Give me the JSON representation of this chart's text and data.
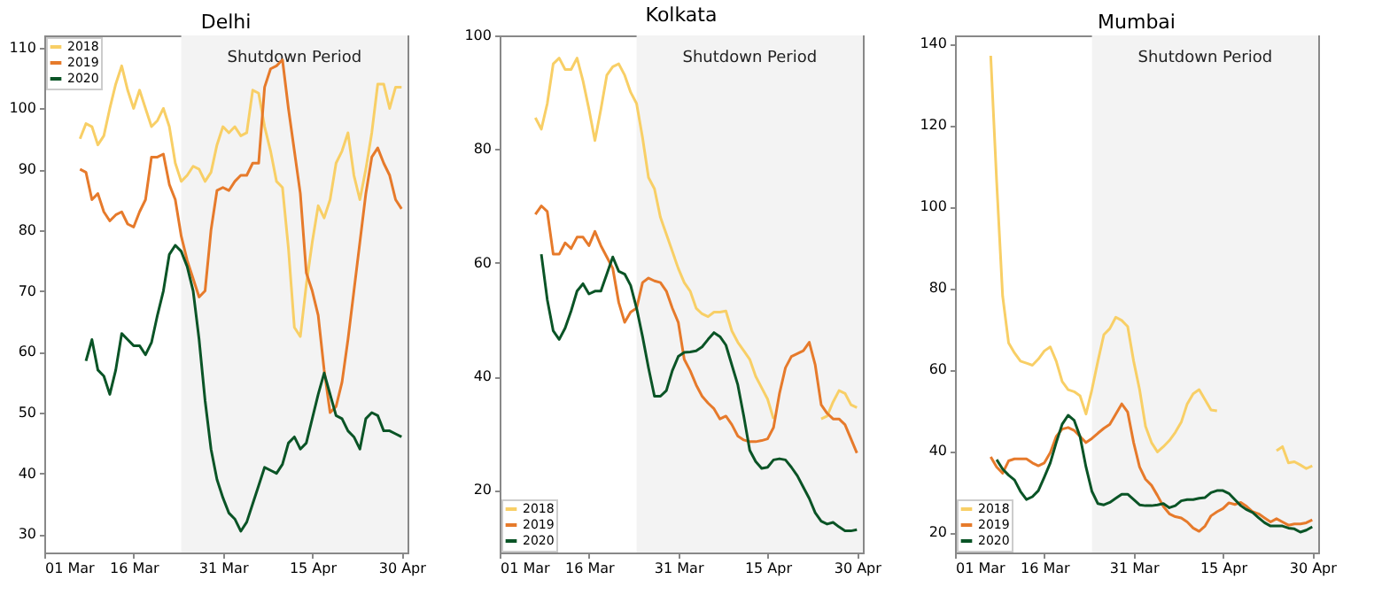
{
  "chart_data": [
    {
      "type": "line",
      "title": "Delhi",
      "legend": "top left",
      "grid": false,
      "x": [
        "--03-07",
        "--03-08",
        "--03-09",
        "--03-10",
        "--03-11",
        "--03-12",
        "--03-13",
        "--03-14",
        "--03-15",
        "--03-16",
        "--03-17",
        "--03-18",
        "--03-19",
        "--03-20",
        "--03-21",
        "--03-22",
        "--03-23",
        "--03-24",
        "--03-25",
        "--03-26",
        "--03-27",
        "--03-28",
        "--03-29",
        "--03-30",
        "--03-31",
        "--04-01",
        "--04-02",
        "--04-03",
        "--04-04",
        "--04-05",
        "--04-06",
        "--04-07",
        "--04-08",
        "--04-09",
        "--04-10",
        "--04-11",
        "--04-12",
        "--04-13",
        "--04-14",
        "--04-15",
        "--04-16",
        "--04-17",
        "--04-18",
        "--04-19",
        "--04-20",
        "--04-21",
        "--04-22",
        "--04-23",
        "--04-24",
        "--04-25",
        "--04-26",
        "--04-27",
        "--04-28",
        "--04-29",
        "--04-30"
      ],
      "xlim": [
        "--03-01",
        "--05-01"
      ],
      "xticks": [
        {
          "value": "--03-01",
          "label": "01 Mar"
        },
        {
          "value": "--03-16",
          "label": "16 Mar"
        },
        {
          "value": "--03-31",
          "label": "31 Mar"
        },
        {
          "value": "--04-15",
          "label": "15 Apr"
        },
        {
          "value": "--04-30",
          "label": "30 Apr"
        }
      ],
      "ylim": [
        27,
        112
      ],
      "yticks": [
        30,
        40,
        50,
        60,
        70,
        80,
        90,
        100,
        110
      ],
      "bands": [
        {
          "axis": "x",
          "from": "--03-24",
          "to": "--05-01",
          "label": "Shutdown Period",
          "color": "#f3f3f3"
        }
      ],
      "series": [
        {
          "name": "2018",
          "color": "#f8cf66",
          "values": [
            95,
            97.5,
            97,
            94,
            95.5,
            100,
            104,
            107,
            103,
            100,
            103,
            100,
            97,
            98,
            100,
            97,
            91,
            88,
            89,
            90.5,
            90,
            88,
            89.5,
            94,
            97,
            96,
            97,
            95.5,
            96,
            103,
            102.5,
            97,
            93,
            88,
            87,
            77,
            64,
            62.5,
            71,
            78,
            84,
            82,
            85,
            91,
            93,
            96,
            89,
            85,
            90,
            96,
            104,
            104,
            100,
            103.5,
            103.5
          ]
        },
        {
          "name": "2019",
          "color": "#e67a2b",
          "values": [
            90,
            89.5,
            85,
            86,
            83,
            81.5,
            82.5,
            83,
            81,
            80.5,
            83,
            85,
            92,
            92,
            92.5,
            87.5,
            85,
            79,
            75,
            72,
            69,
            70,
            80,
            86.5,
            87,
            86.5,
            88,
            89,
            89,
            91,
            91,
            103.5,
            106.5,
            107,
            108,
            100,
            93,
            86,
            73,
            70,
            66,
            57,
            50,
            51,
            55,
            62,
            70,
            78,
            86,
            92,
            93.5,
            91,
            89,
            85,
            83.5
          ]
        },
        {
          "name": "2020",
          "color": "#0a5426",
          "values": [
            null,
            58.5,
            62,
            57,
            56,
            53,
            57,
            63,
            62,
            61,
            61,
            59.5,
            61.5,
            66,
            70,
            76,
            77.5,
            76.5,
            74,
            70,
            62,
            52,
            44,
            39,
            36,
            33.5,
            32.5,
            30.5,
            32,
            35,
            38,
            41,
            40.5,
            40,
            41.5,
            45,
            46,
            44,
            45,
            49,
            53,
            56.5,
            53,
            49.5,
            49,
            47,
            46,
            44,
            49,
            50,
            49.5,
            47,
            47,
            46.5,
            46
          ]
        }
      ]
    },
    {
      "type": "line",
      "title": "Kolkata",
      "legend": "bottom left",
      "grid": false,
      "x": [
        "--03-07",
        "--03-08",
        "--03-09",
        "--03-10",
        "--03-11",
        "--03-12",
        "--03-13",
        "--03-14",
        "--03-15",
        "--03-16",
        "--03-17",
        "--03-18",
        "--03-19",
        "--03-20",
        "--03-21",
        "--03-22",
        "--03-23",
        "--03-24",
        "--03-25",
        "--03-26",
        "--03-27",
        "--03-28",
        "--03-29",
        "--03-30",
        "--03-31",
        "--04-01",
        "--04-02",
        "--04-03",
        "--04-04",
        "--04-05",
        "--04-06",
        "--04-07",
        "--04-08",
        "--04-09",
        "--04-10",
        "--04-11",
        "--04-12",
        "--04-13",
        "--04-14",
        "--04-15",
        "--04-16",
        "--04-17",
        "--04-18",
        "--04-19",
        "--04-20",
        "--04-21",
        "--04-22",
        "--04-23",
        "--04-24",
        "--04-25",
        "--04-26",
        "--04-27",
        "--04-28",
        "--04-29",
        "--04-30"
      ],
      "xlim": [
        "--03-01",
        "--05-01"
      ],
      "xticks": [
        {
          "value": "--03-01",
          "label": "01 Mar"
        },
        {
          "value": "--03-16",
          "label": "16 Mar"
        },
        {
          "value": "--03-31",
          "label": "31 Mar"
        },
        {
          "value": "--04-15",
          "label": "15 Apr"
        },
        {
          "value": "--04-30",
          "label": "30 Apr"
        }
      ],
      "ylim": [
        9,
        100
      ],
      "yticks": [
        20,
        40,
        60,
        80,
        100
      ],
      "bands": [
        {
          "axis": "x",
          "from": "--03-24",
          "to": "--05-01",
          "label": "Shutdown Period",
          "color": "#f3f3f3"
        }
      ],
      "series": [
        {
          "name": "2018",
          "color": "#f8cf66",
          "values": [
            85.5,
            83.5,
            88,
            95,
            96,
            94,
            94,
            96,
            92,
            87,
            81.5,
            87,
            93,
            94.5,
            95,
            93,
            90,
            88,
            82,
            75,
            73,
            68,
            65,
            62,
            59,
            56.5,
            55,
            52,
            51,
            50.5,
            51.3,
            51.3,
            51.5,
            48,
            46,
            44.5,
            43,
            40,
            38,
            36,
            32.5,
            null,
            null,
            null,
            null,
            null,
            null,
            null,
            32.5,
            33,
            35.5,
            37.5,
            37,
            35,
            34.5
          ]
        },
        {
          "name": "2019",
          "color": "#e67a2b",
          "values": [
            68.5,
            70,
            69,
            61.5,
            61.5,
            63.5,
            62.5,
            64.5,
            64.5,
            63,
            65.5,
            63,
            61,
            59,
            53,
            49.5,
            51.3,
            52,
            56.5,
            57.3,
            56.8,
            56.5,
            55,
            52,
            49.5,
            43,
            41,
            38.5,
            36.5,
            35.3,
            34.3,
            32.5,
            33,
            31.5,
            29.5,
            28.8,
            28.5,
            28.5,
            28.7,
            29,
            31,
            37,
            41.5,
            43.5,
            44,
            44.5,
            46,
            42,
            35,
            33.5,
            32.5,
            32.5,
            31.5,
            29,
            26.5
          ]
        },
        {
          "name": "2020",
          "color": "#0a5426",
          "values": [
            null,
            61.5,
            53.5,
            48,
            46.5,
            48.5,
            51.5,
            55,
            56.3,
            54.5,
            55,
            55,
            58,
            61,
            58.5,
            58,
            56,
            52,
            47,
            41.5,
            36.5,
            36.5,
            37.5,
            41,
            43.5,
            44.2,
            44.3,
            44.5,
            45.2,
            46.5,
            47.7,
            47,
            45.5,
            42,
            38.5,
            33,
            27,
            25,
            23.8,
            24,
            25.3,
            25.5,
            25.3,
            24,
            22.5,
            20.5,
            18.5,
            16,
            14.5,
            14,
            14.3,
            13.5,
            12.8,
            12.8,
            13
          ]
        }
      ]
    },
    {
      "type": "line",
      "title": "Mumbai",
      "legend": "bottom left",
      "grid": false,
      "x": [
        "--03-07",
        "--03-08",
        "--03-09",
        "--03-10",
        "--03-11",
        "--03-12",
        "--03-13",
        "--03-14",
        "--03-15",
        "--03-16",
        "--03-17",
        "--03-18",
        "--03-19",
        "--03-20",
        "--03-21",
        "--03-22",
        "--03-23",
        "--03-24",
        "--03-25",
        "--03-26",
        "--03-27",
        "--03-28",
        "--03-29",
        "--03-30",
        "--03-31",
        "--04-01",
        "--04-02",
        "--04-03",
        "--04-04",
        "--04-05",
        "--04-06",
        "--04-07",
        "--04-08",
        "--04-09",
        "--04-10",
        "--04-11",
        "--04-12",
        "--04-13",
        "--04-14",
        "--04-15",
        "--04-16",
        "--04-17",
        "--04-18",
        "--04-19",
        "--04-20",
        "--04-21",
        "--04-22",
        "--04-23",
        "--04-24",
        "--04-25",
        "--04-26",
        "--04-27",
        "--04-28",
        "--04-29",
        "--04-30"
      ],
      "xlim": [
        "--03-01",
        "--05-01"
      ],
      "xticks": [
        {
          "value": "--03-01",
          "label": "01 Mar"
        },
        {
          "value": "--03-16",
          "label": "16 Mar"
        },
        {
          "value": "--03-31",
          "label": "31 Mar"
        },
        {
          "value": "--04-15",
          "label": "15 Apr"
        },
        {
          "value": "--04-30",
          "label": "30 Apr"
        }
      ],
      "ylim": [
        15,
        142
      ],
      "yticks": [
        20,
        40,
        60,
        80,
        100,
        120,
        140
      ],
      "bands": [
        {
          "axis": "x",
          "from": "--03-24",
          "to": "--05-01",
          "label": "Shutdown Period",
          "color": "#f3f3f3"
        }
      ],
      "series": [
        {
          "name": "2018",
          "color": "#f8cf66",
          "values": [
            137,
            106,
            78,
            66.5,
            64,
            62,
            61.5,
            61,
            62.5,
            64.5,
            65.5,
            62,
            57,
            55,
            54.5,
            53.5,
            49,
            55,
            62,
            68.5,
            70,
            72.8,
            72,
            70.5,
            62,
            55,
            46,
            42,
            39.7,
            41,
            42.5,
            44.5,
            47,
            51.5,
            54,
            55,
            52.5,
            50,
            49.8,
            null,
            null,
            null,
            null,
            null,
            null,
            null,
            null,
            null,
            40,
            41,
            37,
            37.3,
            36.5,
            35.6,
            36.3
          ]
        },
        {
          "name": "2019",
          "color": "#e67a2b",
          "values": [
            38.5,
            36,
            34.5,
            37.5,
            38,
            38,
            38,
            37,
            36.3,
            37,
            39.5,
            43.5,
            45.3,
            45.7,
            45,
            43.5,
            42,
            43,
            44.3,
            45.5,
            46.5,
            49,
            51.5,
            49.5,
            42,
            36,
            33,
            31.5,
            29,
            26.3,
            24.5,
            23.8,
            23.5,
            22.5,
            21,
            20.2,
            21.5,
            24,
            25,
            25.8,
            27.2,
            26.8,
            27.3,
            26.3,
            25,
            24.5,
            23.5,
            22.5,
            23.3,
            22.5,
            21.7,
            22,
            22,
            22.3,
            23
          ]
        },
        {
          "name": "2020",
          "color": "#0a5426",
          "values": [
            null,
            37.8,
            35.5,
            34,
            32.8,
            30,
            28,
            28.7,
            30.2,
            33.5,
            37,
            42,
            46.5,
            48.7,
            47.5,
            43.5,
            36,
            30,
            27,
            26.7,
            27.3,
            28.3,
            29.3,
            29.3,
            28,
            26.7,
            26.5,
            26.5,
            26.7,
            27,
            26,
            26.5,
            27.7,
            28,
            28,
            28.3,
            28.5,
            29.7,
            30.2,
            30.2,
            29.5,
            28,
            26.5,
            25.5,
            24.8,
            23.5,
            22.3,
            21.5,
            21.5,
            21.5,
            21,
            20.8,
            20,
            20.5,
            21.3
          ]
        }
      ]
    }
  ]
}
